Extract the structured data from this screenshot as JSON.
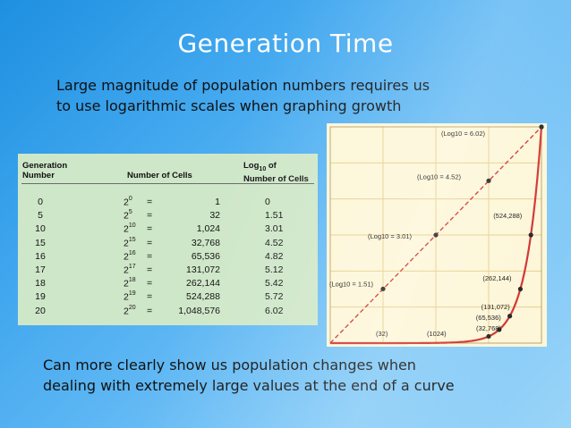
{
  "title": "Generation Time",
  "intro": {
    "line1": "Large magnitude of population numbers requires us",
    "line2": "to use logarithmic scales when graphing growth"
  },
  "table": {
    "headers": {
      "generation_line1": "Generation",
      "generation_line2": "Number",
      "cells": "Number of Cells",
      "log_line1": "Log",
      "log_sub": "10",
      "log_after": " of",
      "log_line2": "Number of Cells"
    },
    "rows": [
      {
        "gen": "0",
        "base": "2",
        "exp": "0",
        "eq": "=",
        "cells": "1",
        "log": "0"
      },
      {
        "gen": "5",
        "base": "2",
        "exp": "5",
        "eq": "=",
        "cells": "32",
        "log": "1.51"
      },
      {
        "gen": "10",
        "base": "2",
        "exp": "10",
        "eq": "=",
        "cells": "1,024",
        "log": "3.01"
      },
      {
        "gen": "15",
        "base": "2",
        "exp": "15",
        "eq": "=",
        "cells": "32,768",
        "log": "4.52"
      },
      {
        "gen": "16",
        "base": "2",
        "exp": "16",
        "eq": "=",
        "cells": "65,536",
        "log": "4.82"
      },
      {
        "gen": "17",
        "base": "2",
        "exp": "17",
        "eq": "=",
        "cells": "131,072",
        "log": "5.12"
      },
      {
        "gen": "18",
        "base": "2",
        "exp": "18",
        "eq": "=",
        "cells": "262,144",
        "log": "5.42"
      },
      {
        "gen": "19",
        "base": "2",
        "exp": "19",
        "eq": "=",
        "cells": "524,288",
        "log": "5.72"
      },
      {
        "gen": "20",
        "base": "2",
        "exp": "20",
        "eq": "=",
        "cells": "1,048,576",
        "log": "6.02"
      }
    ]
  },
  "chart_data": {
    "type": "line",
    "title": "",
    "xlabel": "",
    "ylabel": "",
    "grid": true,
    "series": [
      {
        "style": "dashed",
        "color": "#d0312d",
        "points": [
          {
            "x": 0,
            "y": 0
          },
          {
            "x": 5,
            "y": 1.51
          },
          {
            "x": 10,
            "y": 3.01
          },
          {
            "x": 15,
            "y": 4.52
          },
          {
            "x": 20,
            "y": 6.02
          }
        ],
        "labels": [
          {
            "x": 5,
            "label": "(Log10 = 1.51)"
          },
          {
            "x": 10,
            "label": "(Log10 = 3.01)"
          },
          {
            "x": 15,
            "label": "(Log10 = 4.52)"
          },
          {
            "x": 20,
            "label": "(Log10 = 6.02)"
          }
        ]
      },
      {
        "style": "solid",
        "color": "#d0312d",
        "points": [
          {
            "x": 0,
            "y": 1
          },
          {
            "x": 5,
            "y": 32
          },
          {
            "x": 10,
            "y": 1024
          },
          {
            "x": 15,
            "y": 32768
          },
          {
            "x": 16,
            "y": 65536
          },
          {
            "x": 17,
            "y": 131072
          },
          {
            "x": 18,
            "y": 262144
          },
          {
            "x": 19,
            "y": 524288
          },
          {
            "x": 20,
            "y": 1048576
          }
        ],
        "labels": [
          {
            "x": 5,
            "label": "(32)"
          },
          {
            "x": 10,
            "label": "(1024)"
          },
          {
            "x": 15,
            "label": "(32,768)"
          },
          {
            "x": 16,
            "label": "(65,536)"
          },
          {
            "x": 17,
            "label": "(131,072)"
          },
          {
            "x": 18,
            "label": "(262,144)"
          },
          {
            "x": 19,
            "label": "(524,288)"
          }
        ]
      }
    ]
  },
  "bottom": {
    "line1": "Can more clearly show us population changes when",
    "line2": "dealing with extremely large values at the end of a curve"
  },
  "colors": {
    "table_bg": "#cfe7c9",
    "graph_bg": "#fdf6d8",
    "grid": "#e6cf8a",
    "curve": "#d0312d"
  }
}
